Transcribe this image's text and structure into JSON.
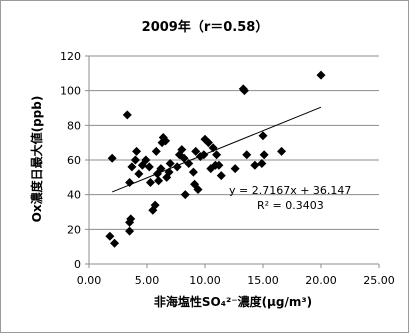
{
  "chart_data": {
    "type": "scatter",
    "title": "2009年（r＝0.58）",
    "xlabel": "非海塩性SO₄²⁻濃度(μg/m³)",
    "ylabel": "Ox濃度日最大値(ppb)",
    "xlim": [
      0,
      25
    ],
    "ylim": [
      0,
      120
    ],
    "x_ticks": [
      "0.00",
      "5.00",
      "10.00",
      "15.00",
      "20.00",
      "25.00"
    ],
    "y_ticks": [
      "0",
      "20",
      "40",
      "60",
      "80",
      "100",
      "120"
    ],
    "grid": "horizontal",
    "points": [
      {
        "x": 1.8,
        "y": 16
      },
      {
        "x": 2.2,
        "y": 12
      },
      {
        "x": 2.0,
        "y": 61
      },
      {
        "x": 3.3,
        "y": 86
      },
      {
        "x": 3.5,
        "y": 19
      },
      {
        "x": 3.5,
        "y": 24
      },
      {
        "x": 3.6,
        "y": 26
      },
      {
        "x": 3.5,
        "y": 47
      },
      {
        "x": 3.7,
        "y": 56
      },
      {
        "x": 4.0,
        "y": 60
      },
      {
        "x": 4.1,
        "y": 65
      },
      {
        "x": 4.3,
        "y": 52
      },
      {
        "x": 4.6,
        "y": 57
      },
      {
        "x": 4.9,
        "y": 60
      },
      {
        "x": 5.2,
        "y": 56
      },
      {
        "x": 5.3,
        "y": 47
      },
      {
        "x": 5.5,
        "y": 31
      },
      {
        "x": 5.7,
        "y": 34
      },
      {
        "x": 5.8,
        "y": 65
      },
      {
        "x": 5.9,
        "y": 52
      },
      {
        "x": 6.0,
        "y": 48
      },
      {
        "x": 6.2,
        "y": 55
      },
      {
        "x": 6.3,
        "y": 70
      },
      {
        "x": 6.4,
        "y": 73
      },
      {
        "x": 6.6,
        "y": 71
      },
      {
        "x": 6.7,
        "y": 50
      },
      {
        "x": 6.9,
        "y": 53
      },
      {
        "x": 7.0,
        "y": 58
      },
      {
        "x": 7.6,
        "y": 56
      },
      {
        "x": 7.8,
        "y": 63
      },
      {
        "x": 8.0,
        "y": 66
      },
      {
        "x": 8.2,
        "y": 61
      },
      {
        "x": 8.3,
        "y": 40
      },
      {
        "x": 8.6,
        "y": 58
      },
      {
        "x": 9.0,
        "y": 53
      },
      {
        "x": 9.1,
        "y": 46
      },
      {
        "x": 9.2,
        "y": 65
      },
      {
        "x": 9.4,
        "y": 43
      },
      {
        "x": 9.6,
        "y": 62
      },
      {
        "x": 9.9,
        "y": 63
      },
      {
        "x": 10.0,
        "y": 72
      },
      {
        "x": 10.3,
        "y": 70
      },
      {
        "x": 10.5,
        "y": 55
      },
      {
        "x": 10.7,
        "y": 67
      },
      {
        "x": 10.9,
        "y": 57
      },
      {
        "x": 11.0,
        "y": 63
      },
      {
        "x": 11.2,
        "y": 57
      },
      {
        "x": 11.4,
        "y": 51
      },
      {
        "x": 12.6,
        "y": 55
      },
      {
        "x": 13.3,
        "y": 101
      },
      {
        "x": 13.4,
        "y": 100
      },
      {
        "x": 13.6,
        "y": 63
      },
      {
        "x": 14.3,
        "y": 57
      },
      {
        "x": 14.9,
        "y": 58
      },
      {
        "x": 15.0,
        "y": 74
      },
      {
        "x": 15.1,
        "y": 63
      },
      {
        "x": 16.6,
        "y": 65
      },
      {
        "x": 20.0,
        "y": 109
      }
    ],
    "trendline": {
      "slope": 2.7167,
      "intercept": 36.147,
      "x_range": [
        2,
        20
      ]
    },
    "annotations": {
      "equation": "y = 2.7167x + 36.147",
      "r_squared": "R² = 0.3403"
    }
  }
}
